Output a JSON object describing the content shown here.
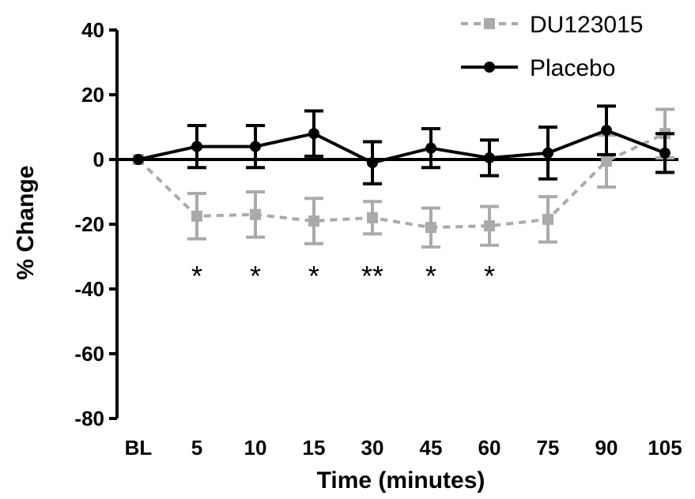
{
  "chart_data": {
    "type": "line",
    "title": "",
    "xlabel": "Time (minutes)",
    "ylabel": "% Change",
    "categories": [
      "BL",
      "5",
      "10",
      "15",
      "30",
      "45",
      "60",
      "75",
      "90",
      "105"
    ],
    "ylim": [
      -80,
      40
    ],
    "yticks": [
      "40",
      "20",
      "0",
      "-20",
      "-40",
      "-60",
      "-80"
    ],
    "legend_position": "top-right",
    "series": [
      {
        "name": "DU123015",
        "color": "#aaaaaa",
        "style": "dashed",
        "marker": "square",
        "values": [
          0,
          -17.5,
          -17,
          -19,
          -18,
          -21,
          -20.5,
          -18.5,
          -0.5,
          8
        ],
        "errors": [
          0,
          7,
          7,
          7,
          5,
          6,
          6,
          7,
          8,
          7.5
        ]
      },
      {
        "name": "Placebo",
        "color": "#000000",
        "style": "solid",
        "marker": "circle",
        "values": [
          0,
          4,
          4,
          8,
          -1,
          3.5,
          0.5,
          2,
          9,
          2
        ],
        "errors": [
          0,
          6.5,
          6.5,
          7,
          6.5,
          6,
          5.5,
          8,
          7.5,
          6
        ]
      }
    ],
    "annotations": [
      {
        "category": "5",
        "text": "*"
      },
      {
        "category": "10",
        "text": "*"
      },
      {
        "category": "15",
        "text": "*"
      },
      {
        "category": "30",
        "text": "**"
      },
      {
        "category": "45",
        "text": "*"
      },
      {
        "category": "60",
        "text": "*"
      }
    ]
  }
}
